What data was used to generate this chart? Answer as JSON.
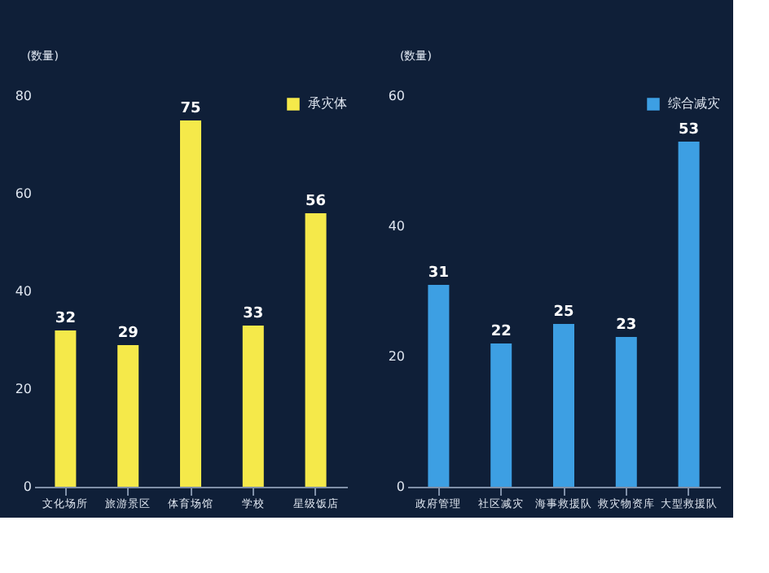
{
  "chart_data": [
    {
      "type": "bar",
      "ylabel": "(数量)",
      "categories": [
        "文化场所",
        "旅游景区",
        "体育场馆",
        "学校",
        "星级饭店"
      ],
      "series": [
        {
          "name": "承灾体",
          "color": "#f5e94a",
          "values": [
            32,
            29,
            75,
            33,
            56
          ]
        }
      ],
      "ylim": [
        0,
        80
      ],
      "yticks": [
        0,
        20,
        40,
        60,
        80
      ],
      "data_labels": true,
      "legend": "top right",
      "grid": false
    },
    {
      "type": "bar",
      "ylabel": "(数量)",
      "categories": [
        "政府管理",
        "社区减灾",
        "海事救援队",
        "救灾物资库",
        "大型救援队"
      ],
      "series": [
        {
          "name": "综合减灾",
          "color": "#3d9fe3",
          "values": [
            31,
            22,
            25,
            23,
            53
          ]
        }
      ],
      "ylim": [
        0,
        60
      ],
      "yticks": [
        0,
        20,
        40,
        60
      ],
      "data_labels": true,
      "legend": "top right",
      "grid": false
    }
  ]
}
